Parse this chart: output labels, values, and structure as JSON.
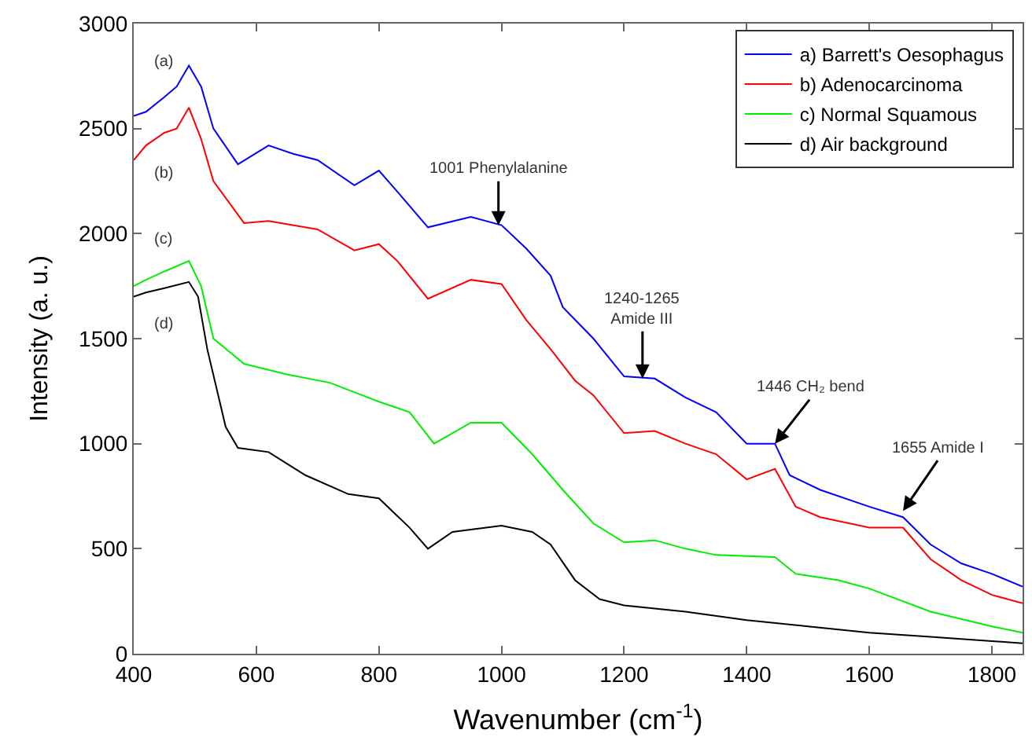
{
  "chart_data": {
    "type": "line",
    "xlabel": "Wavenumber (cm$^{-1}$)",
    "ylabel": "Intensity (a. u.)",
    "xlim": [
      400,
      1850
    ],
    "xticks": [
      400,
      600,
      800,
      1000,
      1200,
      1400,
      1600,
      1800
    ],
    "ylim": [
      0,
      3000
    ],
    "yticks": [
      0,
      500,
      1000,
      1500,
      2000,
      2500,
      3000
    ],
    "legend": "top right",
    "line_style": "solid",
    "marker": "none",
    "series": [
      {
        "name": "a) Barrett's Oesophagus",
        "color": "#0000ff",
        "x": [
          400,
          420,
          450,
          470,
          490,
          510,
          530,
          570,
          620,
          660,
          700,
          760,
          800,
          830,
          880,
          950,
          1000,
          1040,
          1080,
          1100,
          1150,
          1200,
          1250,
          1300,
          1350,
          1400,
          1446,
          1470,
          1520,
          1600,
          1655,
          1700,
          1750,
          1800,
          1850
        ],
        "values": [
          2560,
          2580,
          2650,
          2700,
          2800,
          2700,
          2500,
          2330,
          2420,
          2380,
          2350,
          2230,
          2300,
          2200,
          2030,
          2080,
          2040,
          1930,
          1800,
          1650,
          1500,
          1320,
          1310,
          1220,
          1150,
          1000,
          1000,
          850,
          780,
          700,
          650,
          520,
          430,
          380,
          320
        ]
      },
      {
        "name": "b) Adenocarcinoma",
        "color": "#ff0000",
        "x": [
          400,
          420,
          450,
          470,
          490,
          510,
          530,
          580,
          620,
          700,
          760,
          800,
          830,
          880,
          950,
          1000,
          1040,
          1080,
          1120,
          1150,
          1200,
          1250,
          1300,
          1350,
          1400,
          1446,
          1480,
          1520,
          1600,
          1655,
          1700,
          1750,
          1800,
          1850
        ],
        "values": [
          2350,
          2420,
          2480,
          2500,
          2600,
          2450,
          2250,
          2050,
          2060,
          2020,
          1920,
          1950,
          1870,
          1690,
          1780,
          1760,
          1590,
          1450,
          1300,
          1230,
          1050,
          1060,
          1000,
          950,
          830,
          880,
          700,
          650,
          600,
          600,
          450,
          350,
          280,
          240
        ]
      },
      {
        "name": "c) Normal Squamous",
        "color": "#00ee00",
        "x": [
          400,
          420,
          450,
          490,
          510,
          530,
          580,
          650,
          720,
          800,
          850,
          890,
          950,
          1000,
          1050,
          1100,
          1150,
          1200,
          1250,
          1300,
          1350,
          1446,
          1480,
          1550,
          1600,
          1700,
          1800,
          1850
        ],
        "values": [
          1750,
          1780,
          1820,
          1870,
          1750,
          1500,
          1380,
          1330,
          1290,
          1200,
          1150,
          1000,
          1100,
          1100,
          950,
          780,
          620,
          530,
          540,
          500,
          470,
          460,
          380,
          350,
          310,
          200,
          130,
          100
        ]
      },
      {
        "name": "d) Air background",
        "color": "#000000",
        "x": [
          400,
          420,
          450,
          490,
          505,
          520,
          550,
          570,
          620,
          680,
          750,
          800,
          850,
          880,
          920,
          1000,
          1050,
          1080,
          1120,
          1160,
          1200,
          1300,
          1400,
          1500,
          1600,
          1700,
          1800,
          1850
        ],
        "values": [
          1700,
          1720,
          1740,
          1770,
          1700,
          1450,
          1080,
          980,
          960,
          850,
          760,
          740,
          600,
          500,
          580,
          610,
          580,
          520,
          350,
          260,
          230,
          200,
          160,
          130,
          100,
          80,
          60,
          50
        ]
      }
    ],
    "annotations": [
      "(a)",
      "(b)",
      "(c)",
      "(d)",
      {
        "text": "1001 Phenylalanine",
        "x": 995,
        "y": 2040
      },
      {
        "text": "1240-1265\nAmide III",
        "x": 1230,
        "y": 1310
      },
      {
        "text": "1446 CH₂ bend",
        "x": 1446,
        "y": 1000
      },
      {
        "text": "1655 Amide I",
        "x": 1655,
        "y": 680
      }
    ]
  }
}
